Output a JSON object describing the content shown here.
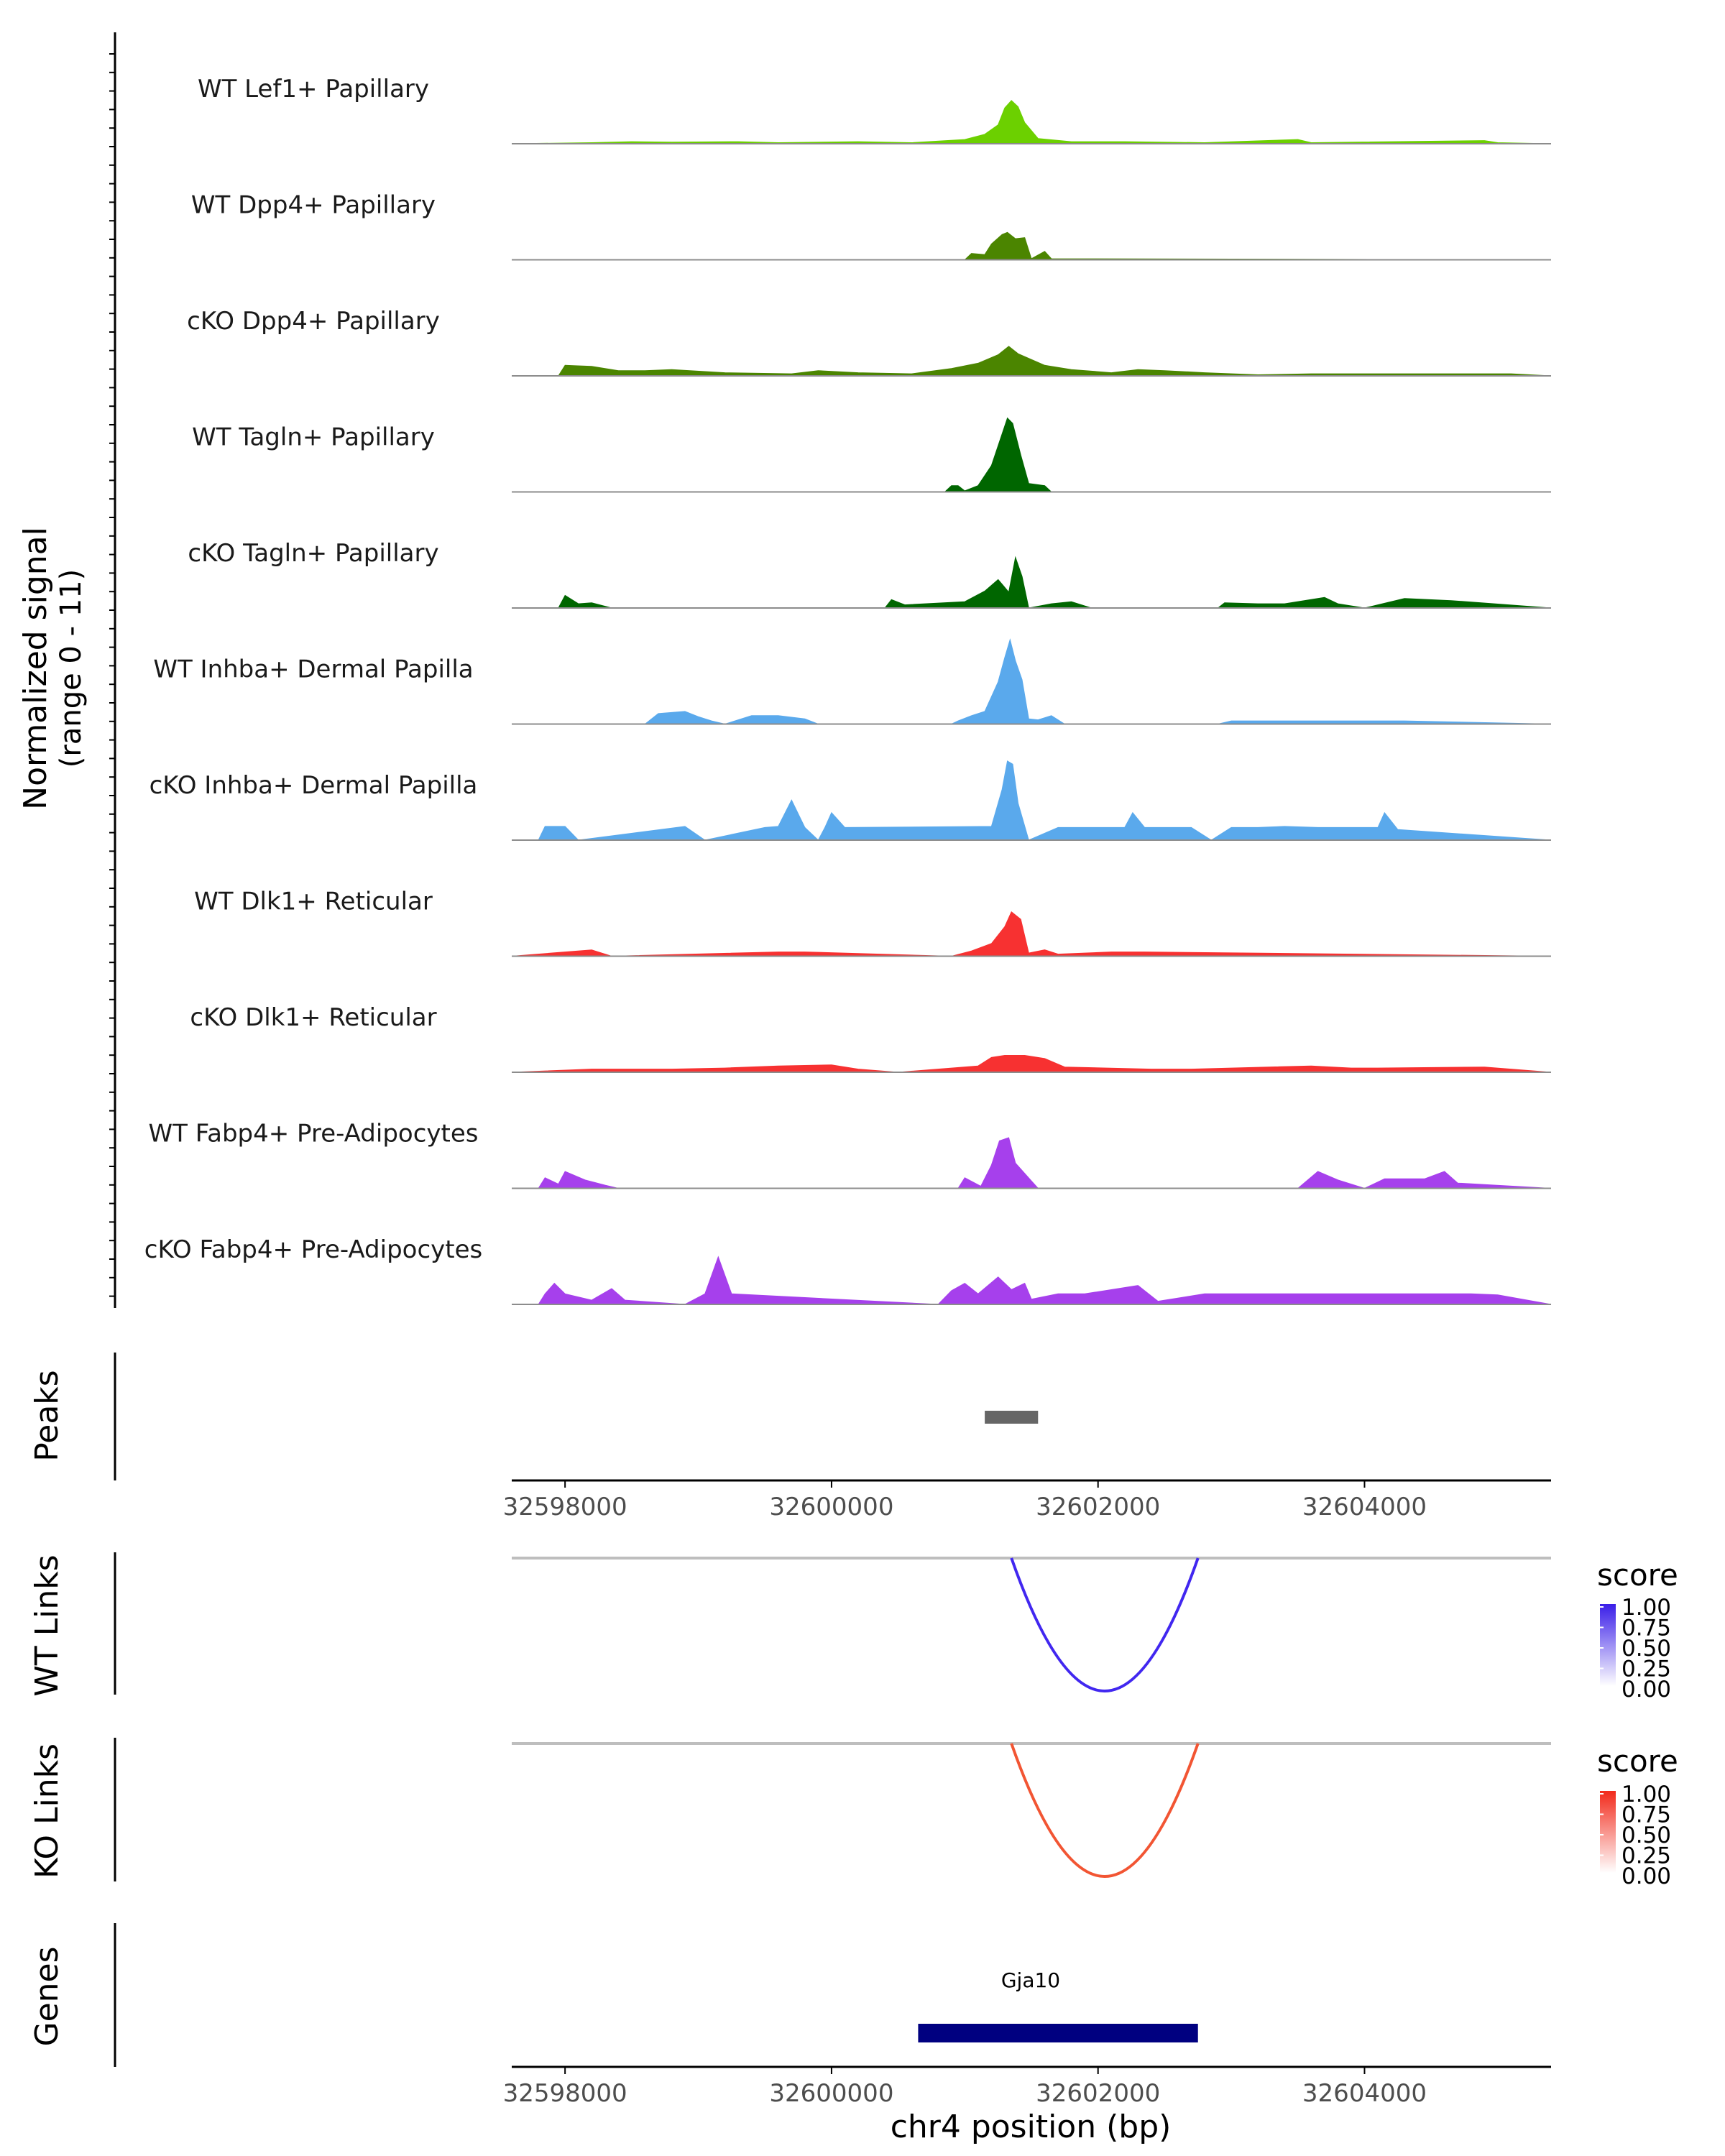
{
  "chart_data": {
    "type": "area",
    "y_axis_title_line1": "Normalized signal",
    "y_axis_title_line2": "(range 0 - 11)",
    "y_range": [
      0,
      11
    ],
    "x_range": [
      32597600,
      32605400
    ],
    "x_ticks": [
      32598000,
      32600000,
      32602000,
      32604000
    ],
    "x_tick_labels": [
      "32598000",
      "32600000",
      "32602000",
      "32604000"
    ],
    "x_axis_title": "chr4 position (bp)",
    "tracks": [
      {
        "name": "WT Lef1+ Papillary",
        "color": "#6cd000",
        "points": [
          [
            32597600,
            0
          ],
          [
            32598200,
            0.1
          ],
          [
            32598500,
            0.2
          ],
          [
            32598800,
            0.15
          ],
          [
            32599300,
            0.2
          ],
          [
            32599600,
            0.1
          ],
          [
            32600200,
            0.2
          ],
          [
            32600600,
            0.1
          ],
          [
            32601000,
            0.4
          ],
          [
            32601150,
            0.9
          ],
          [
            32601250,
            1.8
          ],
          [
            32601300,
            3.4
          ],
          [
            32601350,
            4.1
          ],
          [
            32601400,
            3.5
          ],
          [
            32601450,
            2.0
          ],
          [
            32601550,
            0.5
          ],
          [
            32601800,
            0.2
          ],
          [
            32602200,
            0.2
          ],
          [
            32602800,
            0.1
          ],
          [
            32603500,
            0.4
          ],
          [
            32603600,
            0.1
          ],
          [
            32604900,
            0.3
          ],
          [
            32605000,
            0.1
          ],
          [
            32605400,
            0
          ]
        ]
      },
      {
        "name": "WT Dpp4+ Papillary",
        "color": "#4b8500",
        "points": [
          [
            32597600,
            0
          ],
          [
            32601000,
            0
          ],
          [
            32601050,
            0.6
          ],
          [
            32601150,
            0.5
          ],
          [
            32601200,
            1.5
          ],
          [
            32601280,
            2.4
          ],
          [
            32601320,
            2.6
          ],
          [
            32601380,
            2.0
          ],
          [
            32601450,
            2.1
          ],
          [
            32601500,
            0.1
          ],
          [
            32601600,
            0.8
          ],
          [
            32601650,
            0.1
          ],
          [
            32605400,
            0
          ]
        ]
      },
      {
        "name": "cKO Dpp4+ Papillary",
        "color": "#4b8500",
        "points": [
          [
            32597600,
            0
          ],
          [
            32597950,
            0
          ],
          [
            32598000,
            1.0
          ],
          [
            32598200,
            0.9
          ],
          [
            32598400,
            0.5
          ],
          [
            32598600,
            0.5
          ],
          [
            32598800,
            0.6
          ],
          [
            32599200,
            0.3
          ],
          [
            32599700,
            0.2
          ],
          [
            32599900,
            0.5
          ],
          [
            32600200,
            0.3
          ],
          [
            32600600,
            0.2
          ],
          [
            32600900,
            0.7
          ],
          [
            32601100,
            1.2
          ],
          [
            32601250,
            2.0
          ],
          [
            32601330,
            2.8
          ],
          [
            32601400,
            2.1
          ],
          [
            32601600,
            1.0
          ],
          [
            32601800,
            0.6
          ],
          [
            32602100,
            0.3
          ],
          [
            32602300,
            0.6
          ],
          [
            32602500,
            0.5
          ],
          [
            32602800,
            0.3
          ],
          [
            32603200,
            0.1
          ],
          [
            32603600,
            0.2
          ],
          [
            32604200,
            0.2
          ],
          [
            32604800,
            0.2
          ],
          [
            32605100,
            0.2
          ],
          [
            32605400,
            0
          ]
        ]
      },
      {
        "name": "WT Tagln+ Papillary",
        "color": "#006600",
        "points": [
          [
            32597600,
            0
          ],
          [
            32600850,
            0
          ],
          [
            32600900,
            0.6
          ],
          [
            32600950,
            0.6
          ],
          [
            32601000,
            0.1
          ],
          [
            32601100,
            0.6
          ],
          [
            32601200,
            2.5
          ],
          [
            32601280,
            5.5
          ],
          [
            32601320,
            7.0
          ],
          [
            32601360,
            6.5
          ],
          [
            32601420,
            3.5
          ],
          [
            32601480,
            0.8
          ],
          [
            32601600,
            0.6
          ],
          [
            32601650,
            0
          ],
          [
            32605400,
            0
          ]
        ]
      },
      {
        "name": "cKO Tagln+ Papillary",
        "color": "#006600",
        "points": [
          [
            32597600,
            0
          ],
          [
            32597950,
            0
          ],
          [
            32598000,
            1.2
          ],
          [
            32598100,
            0.4
          ],
          [
            32598200,
            0.5
          ],
          [
            32598350,
            0
          ],
          [
            32600400,
            0
          ],
          [
            32600450,
            0.8
          ],
          [
            32600550,
            0.3
          ],
          [
            32601000,
            0.6
          ],
          [
            32601150,
            1.6
          ],
          [
            32601250,
            2.7
          ],
          [
            32601330,
            1.5
          ],
          [
            32601380,
            4.8
          ],
          [
            32601430,
            3.0
          ],
          [
            32601480,
            0
          ],
          [
            32601650,
            0.4
          ],
          [
            32601800,
            0.6
          ],
          [
            32601950,
            0
          ],
          [
            32602900,
            0
          ],
          [
            32602950,
            0.5
          ],
          [
            32603200,
            0.4
          ],
          [
            32603400,
            0.4
          ],
          [
            32603700,
            1.0
          ],
          [
            32603800,
            0.4
          ],
          [
            32604000,
            0
          ],
          [
            32604300,
            0.9
          ],
          [
            32604650,
            0.7
          ],
          [
            32605400,
            0
          ]
        ]
      },
      {
        "name": "WT Inhba+ Dermal Papilla",
        "color": "#5aa9ec",
        "points": [
          [
            32597600,
            0
          ],
          [
            32598600,
            0
          ],
          [
            32598700,
            1.0
          ],
          [
            32598900,
            1.2
          ],
          [
            32599000,
            0.7
          ],
          [
            32599100,
            0.3
          ],
          [
            32599200,
            0
          ],
          [
            32599400,
            0.8
          ],
          [
            32599600,
            0.8
          ],
          [
            32599800,
            0.5
          ],
          [
            32599900,
            0
          ],
          [
            32600900,
            0
          ],
          [
            32600950,
            0.3
          ],
          [
            32601050,
            0.8
          ],
          [
            32601150,
            1.2
          ],
          [
            32601250,
            4.0
          ],
          [
            32601300,
            6.3
          ],
          [
            32601340,
            8.0
          ],
          [
            32601380,
            6.0
          ],
          [
            32601430,
            4.2
          ],
          [
            32601480,
            0.5
          ],
          [
            32601550,
            0.4
          ],
          [
            32601650,
            0.8
          ],
          [
            32601750,
            0
          ],
          [
            32602900,
            0
          ],
          [
            32603000,
            0.3
          ],
          [
            32603100,
            0.3
          ],
          [
            32603850,
            0.3
          ],
          [
            32604300,
            0.3
          ],
          [
            32605400,
            0
          ]
        ]
      },
      {
        "name": "cKO Inhba+ Dermal Papilla",
        "color": "#5aa9ec",
        "points": [
          [
            32597600,
            0
          ],
          [
            32597800,
            0
          ],
          [
            32597850,
            1.3
          ],
          [
            32598000,
            1.3
          ],
          [
            32598100,
            0
          ],
          [
            32598900,
            1.3
          ],
          [
            32599050,
            0
          ],
          [
            32599500,
            1.2
          ],
          [
            32599600,
            1.3
          ],
          [
            32599700,
            3.8
          ],
          [
            32599800,
            1.2
          ],
          [
            32599900,
            0
          ],
          [
            32599950,
            1.2
          ],
          [
            32600000,
            2.6
          ],
          [
            32600100,
            1.2
          ],
          [
            32601200,
            1.3
          ],
          [
            32601280,
            4.8
          ],
          [
            32601320,
            7.5
          ],
          [
            32601360,
            7.2
          ],
          [
            32601400,
            3.5
          ],
          [
            32601480,
            0
          ],
          [
            32601700,
            1.2
          ],
          [
            32602000,
            1.2
          ],
          [
            32602200,
            1.2
          ],
          [
            32602260,
            2.6
          ],
          [
            32602350,
            1.2
          ],
          [
            32602700,
            1.2
          ],
          [
            32602850,
            0
          ],
          [
            32603000,
            1.2
          ],
          [
            32603200,
            1.2
          ],
          [
            32603400,
            1.3
          ],
          [
            32603650,
            1.2
          ],
          [
            32604100,
            1.2
          ],
          [
            32604150,
            2.6
          ],
          [
            32604250,
            1.0
          ],
          [
            32605400,
            0
          ]
        ]
      },
      {
        "name": "WT Dlk1+ Reticular",
        "color": "#f73131",
        "points": [
          [
            32597600,
            0
          ],
          [
            32598200,
            0.6
          ],
          [
            32598350,
            0
          ],
          [
            32599600,
            0.4
          ],
          [
            32599800,
            0.4
          ],
          [
            32600900,
            0
          ],
          [
            32601050,
            0.5
          ],
          [
            32601200,
            1.2
          ],
          [
            32601300,
            2.8
          ],
          [
            32601350,
            4.2
          ],
          [
            32601420,
            3.5
          ],
          [
            32601480,
            0.3
          ],
          [
            32601600,
            0.6
          ],
          [
            32601700,
            0.2
          ],
          [
            32602100,
            0.4
          ],
          [
            32602350,
            0.4
          ],
          [
            32605400,
            0
          ]
        ]
      },
      {
        "name": "cKO Dlk1+ Reticular",
        "color": "#f73131",
        "points": [
          [
            32597600,
            0
          ],
          [
            32598200,
            0.3
          ],
          [
            32598800,
            0.3
          ],
          [
            32599200,
            0.4
          ],
          [
            32599600,
            0.6
          ],
          [
            32600000,
            0.7
          ],
          [
            32600200,
            0.3
          ],
          [
            32600500,
            0
          ],
          [
            32601100,
            0.6
          ],
          [
            32601200,
            1.4
          ],
          [
            32601300,
            1.6
          ],
          [
            32601450,
            1.6
          ],
          [
            32601600,
            1.3
          ],
          [
            32601750,
            0.5
          ],
          [
            32602400,
            0.3
          ],
          [
            32602700,
            0.3
          ],
          [
            32603600,
            0.6
          ],
          [
            32603900,
            0.4
          ],
          [
            32604100,
            0.4
          ],
          [
            32604900,
            0.5
          ],
          [
            32605400,
            0
          ]
        ]
      },
      {
        "name": "WT Fabp4+ Pre-Adipocytes",
        "color": "#a640ec",
        "points": [
          [
            32597600,
            0
          ],
          [
            32597800,
            0
          ],
          [
            32597850,
            1.0
          ],
          [
            32597950,
            0.4
          ],
          [
            32598000,
            1.6
          ],
          [
            32598150,
            0.8
          ],
          [
            32598300,
            0.3
          ],
          [
            32598400,
            0
          ],
          [
            32600950,
            0
          ],
          [
            32601000,
            1.0
          ],
          [
            32601120,
            0.2
          ],
          [
            32601200,
            2.2
          ],
          [
            32601260,
            4.5
          ],
          [
            32601330,
            4.8
          ],
          [
            32601380,
            2.4
          ],
          [
            32601500,
            0.7
          ],
          [
            32601550,
            0
          ],
          [
            32603500,
            0
          ],
          [
            32603650,
            1.6
          ],
          [
            32603800,
            0.8
          ],
          [
            32604000,
            0
          ],
          [
            32604150,
            0.9
          ],
          [
            32604450,
            0.9
          ],
          [
            32604600,
            1.6
          ],
          [
            32604700,
            0.5
          ],
          [
            32605400,
            0
          ]
        ]
      },
      {
        "name": "cKO Fabp4+ Pre-Adipocytes",
        "color": "#a640ec",
        "points": [
          [
            32597600,
            0
          ],
          [
            32597800,
            0
          ],
          [
            32597850,
            1.0
          ],
          [
            32597920,
            2.0
          ],
          [
            32598000,
            1.0
          ],
          [
            32598200,
            0.4
          ],
          [
            32598350,
            1.5
          ],
          [
            32598450,
            0.4
          ],
          [
            32598900,
            0
          ],
          [
            32599050,
            1.0
          ],
          [
            32599150,
            4.5
          ],
          [
            32599250,
            1.0
          ],
          [
            32600800,
            0
          ],
          [
            32600900,
            1.3
          ],
          [
            32601000,
            2.0
          ],
          [
            32601100,
            1.0
          ],
          [
            32601250,
            2.6
          ],
          [
            32601350,
            1.4
          ],
          [
            32601450,
            2.0
          ],
          [
            32601500,
            0.5
          ],
          [
            32601700,
            1.0
          ],
          [
            32601900,
            1.0
          ],
          [
            32602300,
            1.8
          ],
          [
            32602450,
            0.3
          ],
          [
            32602800,
            1.0
          ],
          [
            32603050,
            1.0
          ],
          [
            32604800,
            1.0
          ],
          [
            32605000,
            0.9
          ],
          [
            32605400,
            0
          ]
        ]
      }
    ],
    "peaks": {
      "label": "Peaks",
      "regions": [
        [
          32601150,
          32601550
        ]
      ]
    },
    "links": [
      {
        "label": "WT Links",
        "color": "#4127f0",
        "from": 32601350,
        "to": 32602750,
        "score": 1.0,
        "legend_title": "score",
        "legend_color": "#3a1ee8",
        "legend_ticks": [
          "1.00",
          "0.75",
          "0.50",
          "0.25",
          "0.00"
        ]
      },
      {
        "label": "KO Links",
        "color": "#f25533",
        "from": 32601350,
        "to": 32602750,
        "score": 1.0,
        "legend_title": "score",
        "legend_color": "#f22a1b",
        "legend_ticks": [
          "1.00",
          "0.75",
          "0.50",
          "0.25",
          "0.00"
        ]
      }
    ],
    "genes": {
      "label": "Genes",
      "items": [
        {
          "name": "Gja10",
          "start": 32600650,
          "end": 32602750,
          "color": "#000080"
        }
      ]
    }
  }
}
